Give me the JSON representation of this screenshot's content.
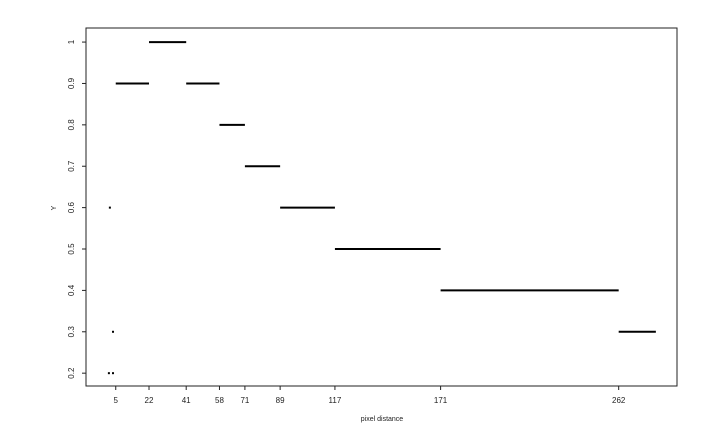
{
  "chart_data": {
    "type": "line",
    "title": "",
    "xlabel": "pixel distance",
    "ylabel": "Y",
    "xlim": [
      -10.2,
      291.8
    ],
    "ylim": [
      0.169,
      1.034
    ],
    "grid": false,
    "x_ticks": [
      5,
      22,
      41,
      58,
      71,
      89,
      117,
      171,
      262
    ],
    "y_ticks": [
      0.2,
      0.3,
      0.4,
      0.5,
      0.6,
      0.7,
      0.8,
      0.9,
      1
    ],
    "y_tick_labels": [
      "0.2",
      "0.3",
      "0.4",
      "0.5",
      "0.6",
      "0.7",
      "0.8",
      "0.9",
      "1"
    ],
    "segments": [
      {
        "x0": 5,
        "x1": 22,
        "y": 0.9
      },
      {
        "x0": 22,
        "x1": 41,
        "y": 1.0
      },
      {
        "x0": 41,
        "x1": 58,
        "y": 0.9
      },
      {
        "x0": 58,
        "x1": 71,
        "y": 0.8
      },
      {
        "x0": 71,
        "x1": 89,
        "y": 0.7
      },
      {
        "x0": 89,
        "x1": 117,
        "y": 0.6
      },
      {
        "x0": 117,
        "x1": 171,
        "y": 0.5
      },
      {
        "x0": 171,
        "x1": 262,
        "y": 0.4
      },
      {
        "x0": 262,
        "x1": 281,
        "y": 0.3
      }
    ],
    "points": [
      {
        "x": 2.0,
        "y": 0.6
      },
      {
        "x": 3.6,
        "y": 0.3
      },
      {
        "x": 1.5,
        "y": 0.2
      },
      {
        "x": 3.6,
        "y": 0.2
      }
    ],
    "line_color": "#000000"
  }
}
